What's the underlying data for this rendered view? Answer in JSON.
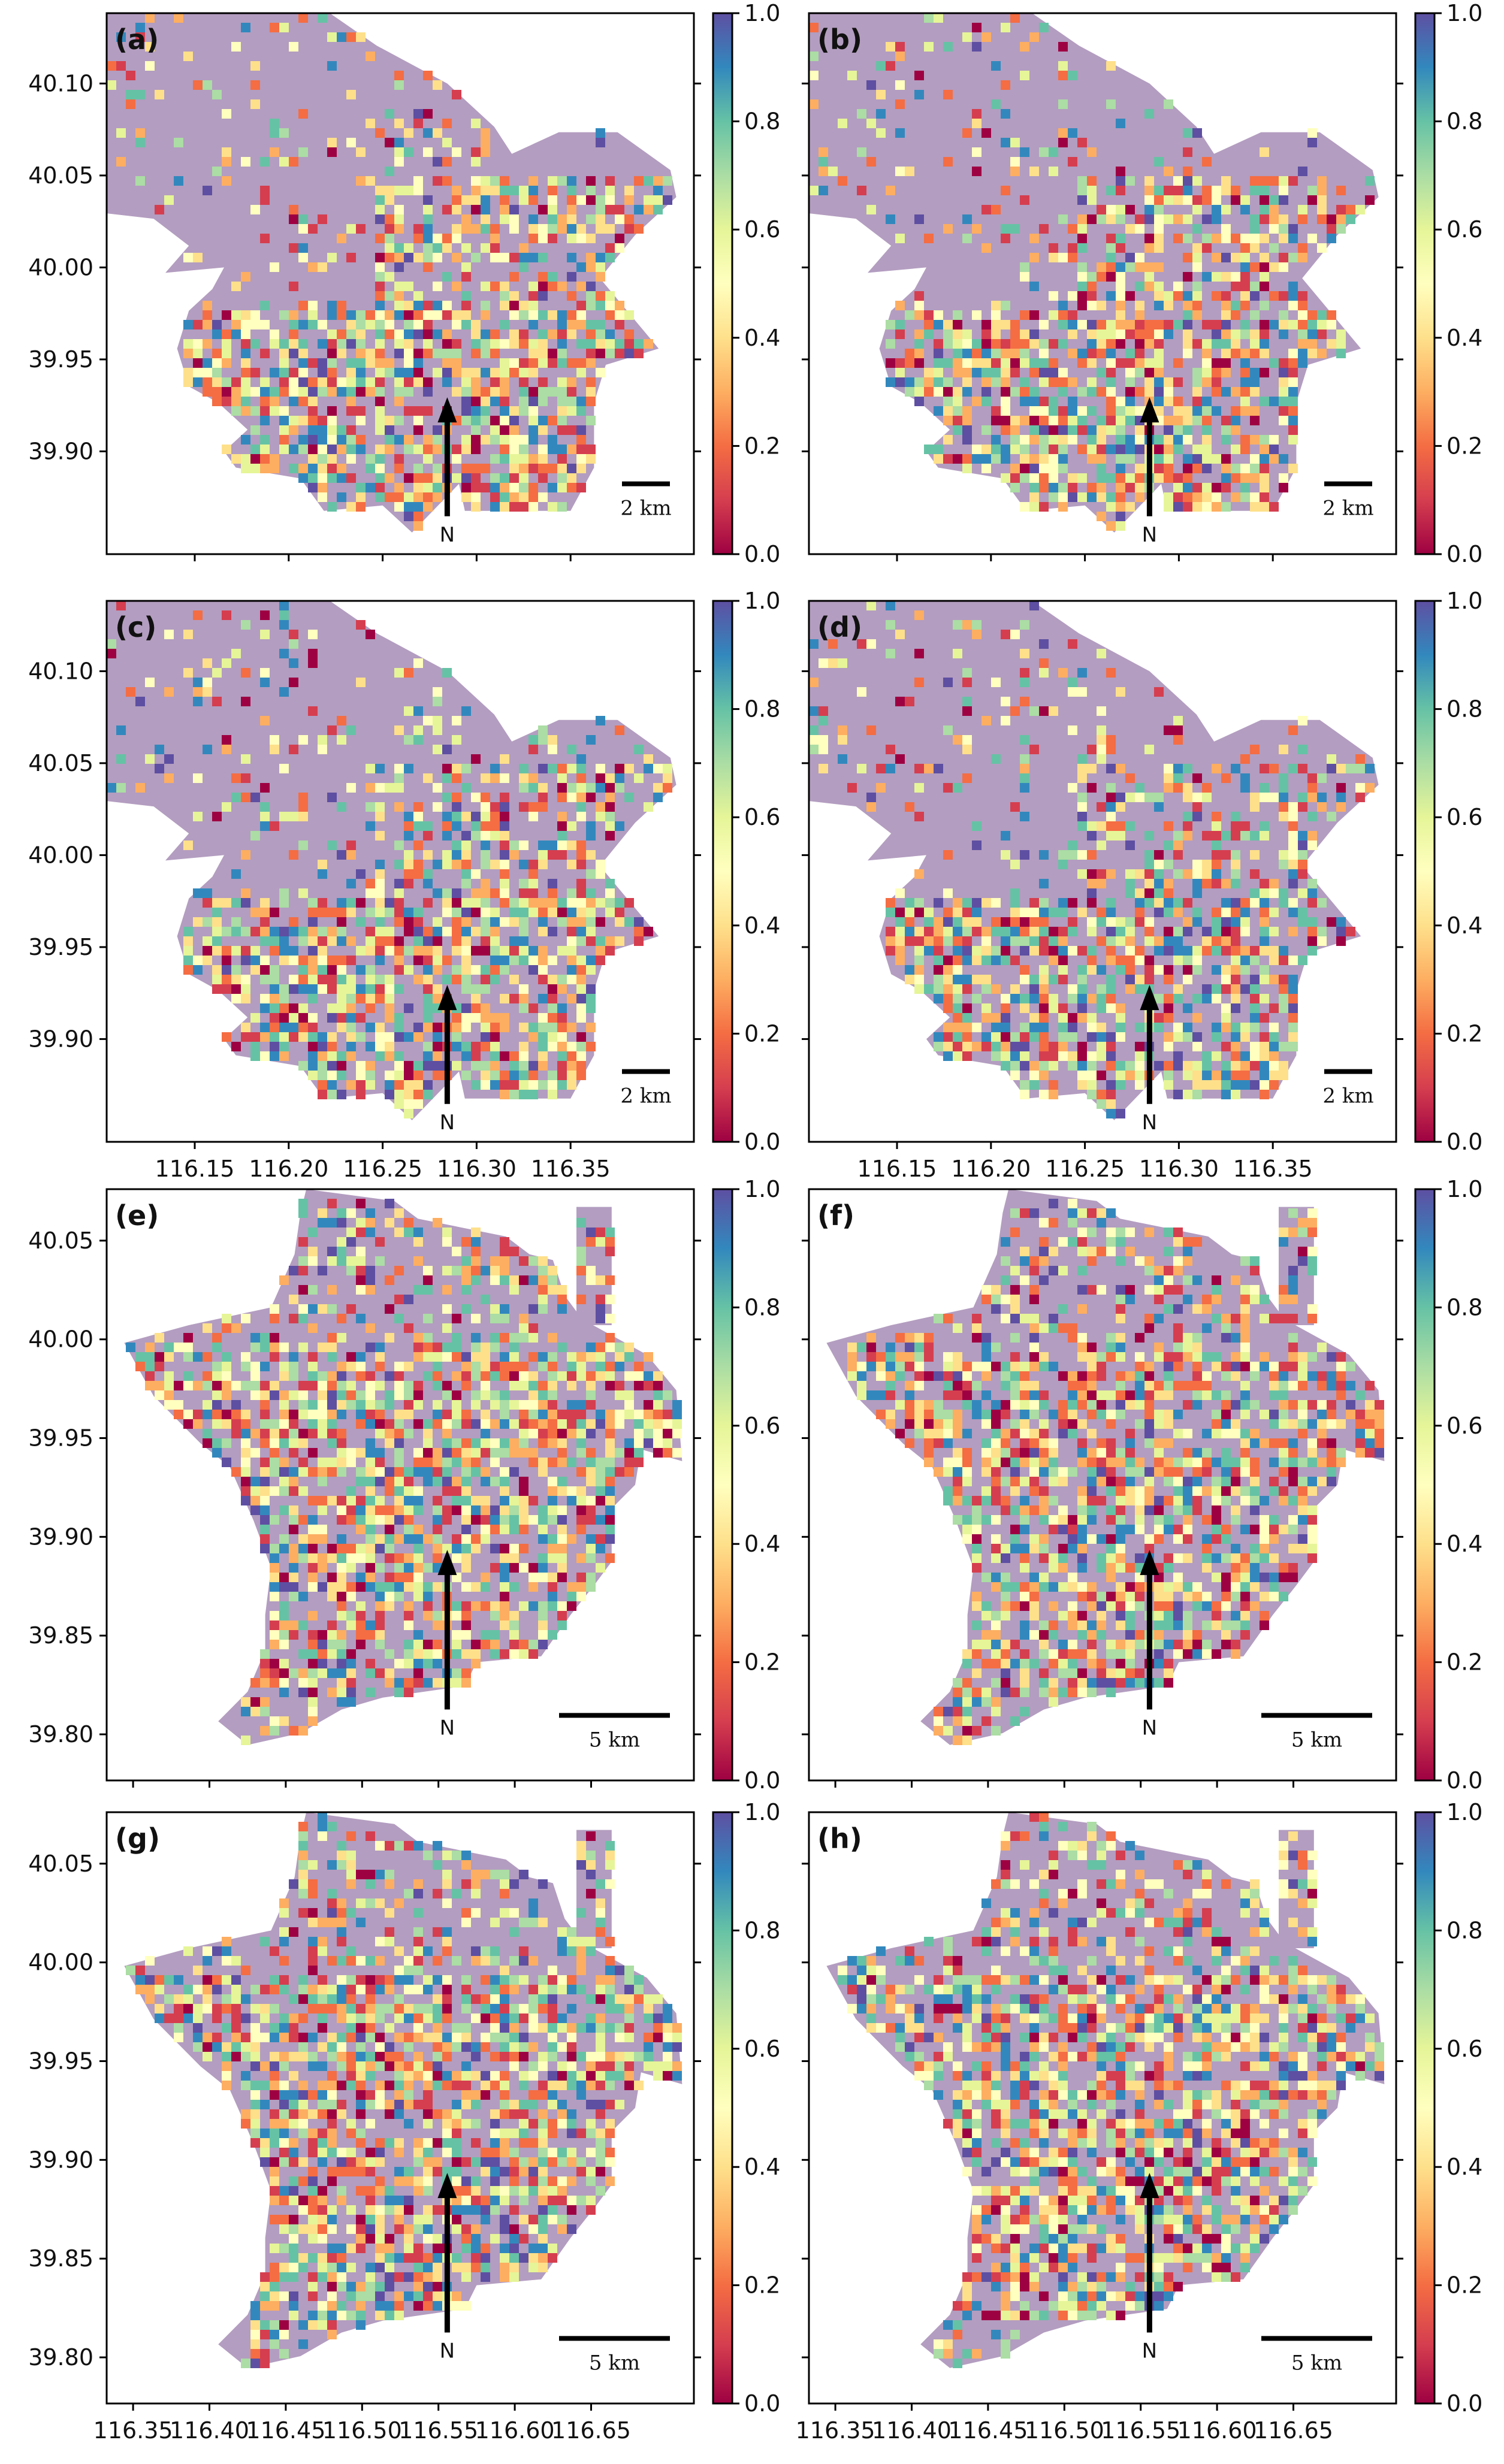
{
  "chart_data": [
    {
      "type": "heatmap",
      "label": "(a)",
      "region": "north",
      "scale_bar": "2 km",
      "north_label": "N"
    },
    {
      "type": "heatmap",
      "label": "(b)",
      "region": "north",
      "scale_bar": "2 km",
      "north_label": "N"
    },
    {
      "type": "heatmap",
      "label": "(c)",
      "region": "north",
      "scale_bar": "2 km",
      "north_label": "N"
    },
    {
      "type": "heatmap",
      "label": "(d)",
      "region": "north",
      "scale_bar": "2 km",
      "north_label": "N"
    },
    {
      "type": "heatmap",
      "label": "(e)",
      "region": "south",
      "scale_bar": "5 km",
      "north_label": "N"
    },
    {
      "type": "heatmap",
      "label": "(f)",
      "region": "south",
      "scale_bar": "5 km",
      "north_label": "N"
    },
    {
      "type": "heatmap",
      "label": "(g)",
      "region": "south",
      "scale_bar": "5 km",
      "north_label": "N"
    },
    {
      "type": "heatmap",
      "label": "(h)",
      "region": "south",
      "scale_bar": "5 km",
      "north_label": "N"
    }
  ],
  "axes": {
    "north_y_ticks": [
      "40.10",
      "40.05",
      "40.00",
      "39.95",
      "39.90"
    ],
    "north_x_ticks": [
      "116.15",
      "116.20",
      "116.25",
      "116.30",
      "116.35"
    ],
    "south_y_ticks": [
      "40.05",
      "40.00",
      "39.95",
      "39.90",
      "39.85",
      "39.80"
    ],
    "south_x_ticks": [
      "116.35",
      "116.40",
      "116.45",
      "116.50",
      "116.55",
      "116.60",
      "116.65"
    ],
    "colorbar_ticks": [
      "1.0",
      "0.8",
      "0.6",
      "0.4",
      "0.2",
      "0.0"
    ]
  },
  "colors": {
    "region_fill": "#b39dc0",
    "colormap": [
      "#9e0142",
      "#d53e4f",
      "#f46d43",
      "#fdae61",
      "#fee08b",
      "#ffffbf",
      "#e6f598",
      "#abdda4",
      "#66c2a5",
      "#3288bd",
      "#5e4fa2"
    ]
  }
}
